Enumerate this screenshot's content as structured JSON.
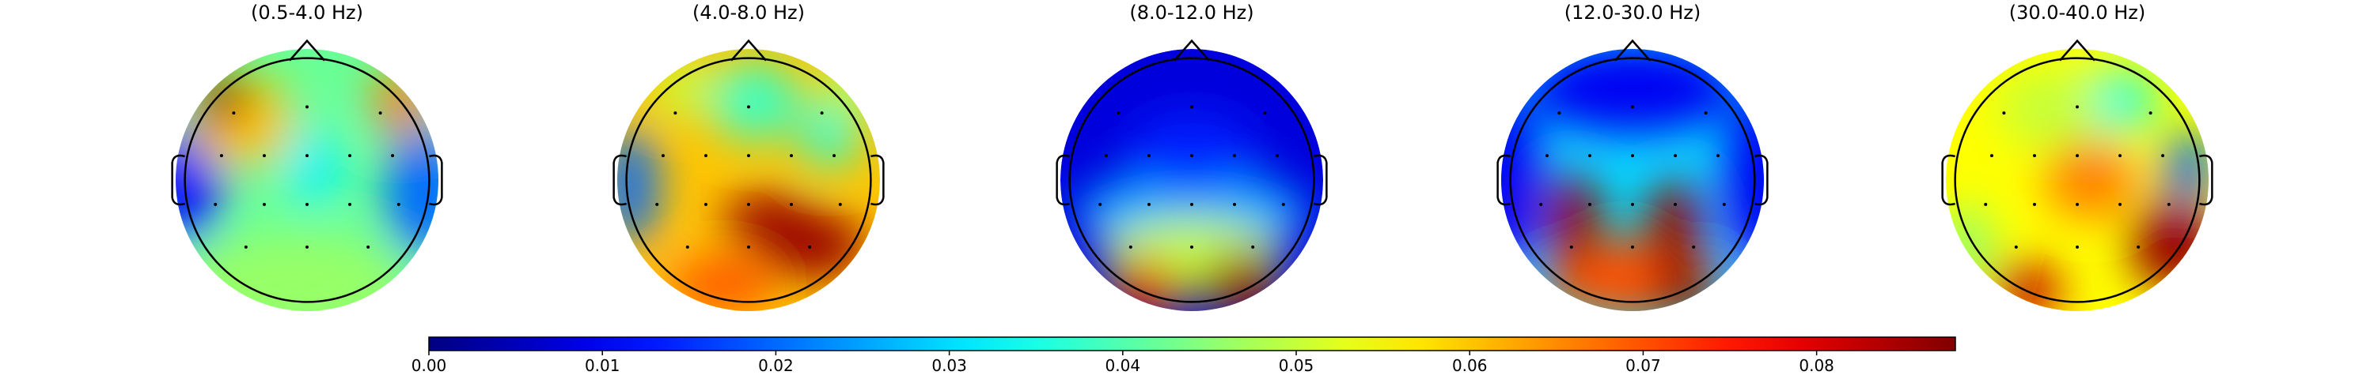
{
  "chart_data": [
    {
      "type": "topomap",
      "title": "(0.5-4.0 Hz)"
    },
    {
      "type": "topomap",
      "title": "(4.0-8.0 Hz)"
    },
    {
      "type": "topomap",
      "title": "(8.0-12.0 Hz)"
    },
    {
      "type": "topomap",
      "title": "(12.0-30.0 Hz)"
    },
    {
      "type": "topomap",
      "title": "(30.0-40.0 Hz)"
    }
  ],
  "colorbar": {
    "colormap": "jet",
    "clim": [
      0,
      0.088
    ],
    "ticks": [
      {
        "value": 0,
        "label": "0.00"
      },
      {
        "value": 0.01,
        "label": "0.01"
      },
      {
        "value": 0.02,
        "label": "0.02"
      },
      {
        "value": 0.03,
        "label": "0.03"
      },
      {
        "value": 0.04,
        "label": "0.04"
      },
      {
        "value": 0.05,
        "label": "0.05"
      },
      {
        "value": 0.06,
        "label": "0.06"
      },
      {
        "value": 0.07,
        "label": "0.07"
      },
      {
        "value": 0.08,
        "label": "0.08"
      }
    ]
  }
}
